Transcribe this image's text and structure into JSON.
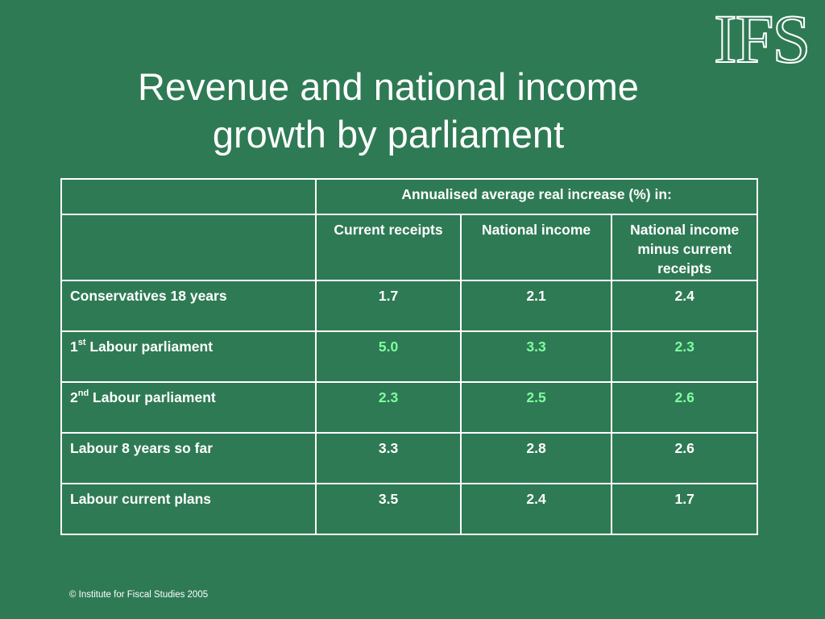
{
  "logo": "IFS",
  "title_line1": "Revenue and national income",
  "title_line2": "growth by parliament",
  "table": {
    "group_header": "Annualised average real increase (%) in:",
    "col_headers": [
      "Current receipts",
      "National income",
      "National income minus current receipts"
    ],
    "rows": [
      {
        "label": "Conservatives 18 years",
        "values": [
          "1.7",
          "2.1",
          "2.4"
        ]
      },
      {
        "label_prefix": "1",
        "label_sup": "st",
        "label": " Labour parliament",
        "values": [
          "5.0",
          "3.3",
          "2.3"
        ]
      },
      {
        "label_prefix": "2",
        "label_sup": "nd",
        "label": " Labour parliament",
        "values": [
          "2.3",
          "2.5",
          "2.6"
        ]
      },
      {
        "label": "Labour 8 years so far",
        "values": [
          "3.3",
          "2.8",
          "2.6"
        ]
      },
      {
        "label": "Labour current plans",
        "values": [
          "3.5",
          "2.4",
          "1.7"
        ]
      }
    ]
  },
  "colors": {
    "background": "#2e7a54",
    "highlight": "#7fffa0",
    "text": "#ffffff"
  },
  "footer": "© Institute for Fiscal Studies 2005"
}
